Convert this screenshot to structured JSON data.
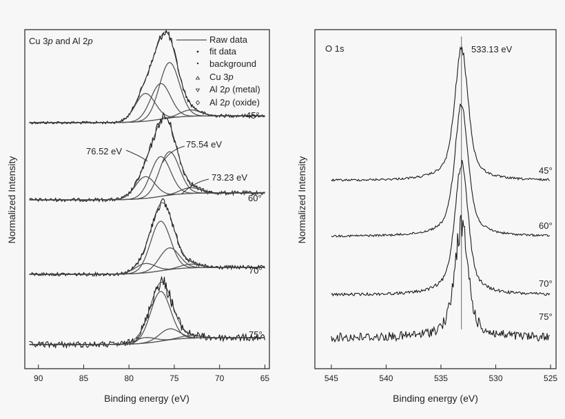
{
  "chart_data": [
    {
      "type": "line",
      "panel_title_parts": [
        "Cu 3",
        "p",
        " and Al 2",
        "p"
      ],
      "xlabel": "Binding energy (eV)",
      "ylabel": "Normalized Intensity",
      "xlim": [
        91.5,
        64.5
      ],
      "x_ticks": [
        90,
        85,
        80,
        75,
        70,
        65
      ],
      "x_tick_labels": [
        "90",
        "85",
        "80",
        "75",
        "70",
        "65"
      ],
      "legend": [
        {
          "label_parts": [
            "Raw data"
          ],
          "marker": "line"
        },
        {
          "label_parts": [
            "fit data"
          ],
          "marker": "dot"
        },
        {
          "label_parts": [
            "background"
          ],
          "marker": "dot"
        },
        {
          "label_parts": [
            "Cu 3",
            "p"
          ],
          "marker": "triangle-up"
        },
        {
          "label_parts": [
            "Al 2",
            "p",
            " (metal)"
          ],
          "marker": "triangle-down"
        },
        {
          "label_parts": [
            "Al 2",
            "p",
            " (oxide)"
          ],
          "marker": "diamond"
        }
      ],
      "series": [
        {
          "angle": "45°",
          "peaks": [
            {
              "center": 75.54,
              "amplitude": 0.7
            },
            {
              "center": 76.52,
              "amplitude": 0.45
            },
            {
              "center": 78.2,
              "amplitude": 0.35
            },
            {
              "center": 73.23,
              "amplitude": 0.08
            }
          ]
        },
        {
          "angle": "60°",
          "peaks": [
            {
              "center": 75.54,
              "amplitude": 0.6
            },
            {
              "center": 76.52,
              "amplitude": 0.55
            },
            {
              "center": 78.2,
              "amplitude": 0.3
            },
            {
              "center": 73.23,
              "amplitude": 0.08
            }
          ]
        },
        {
          "angle": "70°",
          "peaks": [
            {
              "center": 76.52,
              "amplitude": 0.8
            },
            {
              "center": 75.54,
              "amplitude": 0.35
            },
            {
              "center": 78.2,
              "amplitude": 0.15
            },
            {
              "center": 73.23,
              "amplitude": 0.06
            }
          ]
        },
        {
          "angle": "75°",
          "peaks": [
            {
              "center": 76.52,
              "amplitude": 0.9
            },
            {
              "center": 75.54,
              "amplitude": 0.2
            },
            {
              "center": 78.2,
              "amplitude": 0.1
            },
            {
              "center": 73.23,
              "amplitude": 0.05
            }
          ]
        }
      ],
      "annotations": [
        "76.52 eV",
        "75.54 eV",
        "73.23 eV"
      ]
    },
    {
      "type": "line",
      "panel_title": "O 1s",
      "xlabel": "Binding energy (eV)",
      "ylabel": "Normalized Intensity",
      "xlim": [
        546.5,
        524.5
      ],
      "x_ticks": [
        545,
        540,
        535,
        530,
        525
      ],
      "x_tick_labels": [
        "545",
        "540",
        "535",
        "530",
        "525"
      ],
      "reference_line": 533.13,
      "series": [
        {
          "angle": "45°",
          "peak_center": 533.13,
          "amplitude": 1.0
        },
        {
          "angle": "60°",
          "peak_center": 533.13,
          "amplitude": 1.0
        },
        {
          "angle": "70°",
          "peak_center": 533.13,
          "amplitude": 1.0
        },
        {
          "angle": "75°",
          "peak_center": 533.13,
          "amplitude": 1.0
        }
      ],
      "annotations": [
        "533.13 eV"
      ]
    }
  ]
}
